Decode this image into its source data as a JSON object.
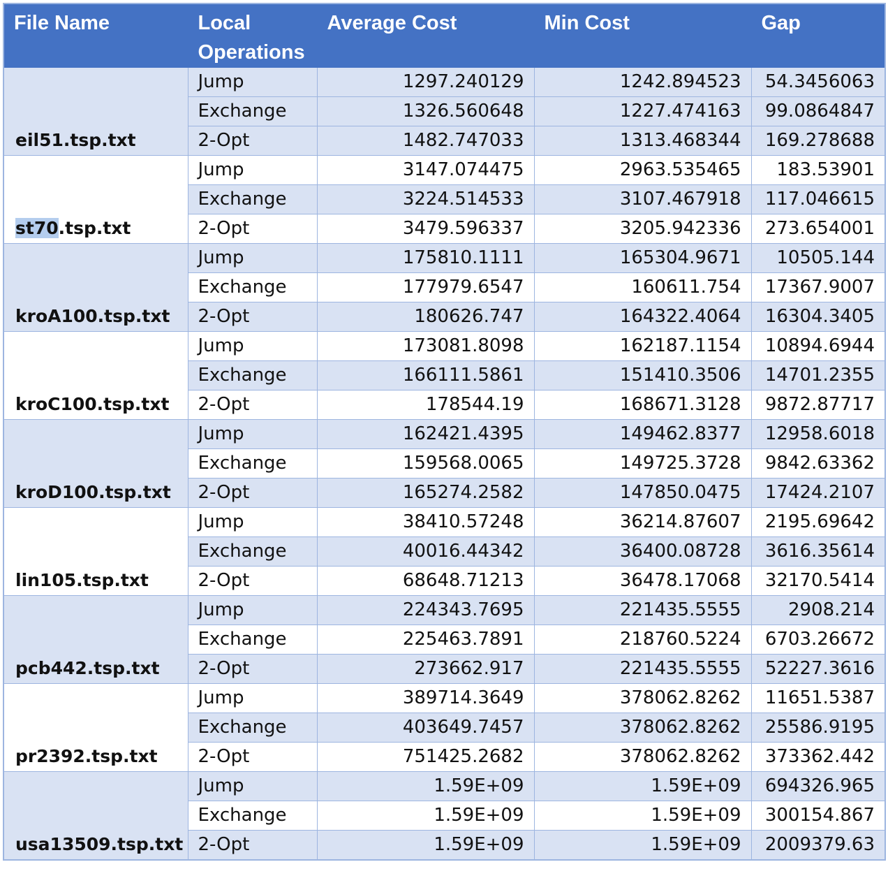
{
  "headers": {
    "file_name": "File Name",
    "local_operations": "Local Operations",
    "average_cost": "Average Cost",
    "min_cost": "Min Cost",
    "gap": "Gap"
  },
  "colors": {
    "header_bg": "#4472c4",
    "band_bg": "#d9e2f3",
    "plain_bg": "#ffffff",
    "selection": "#b4cdee"
  },
  "groups": [
    {
      "file": "eil51.tsp.txt",
      "rows": [
        {
          "op": "Jump",
          "avg": "1297.240129",
          "min": "1242.894523",
          "gap": "54.3456063"
        },
        {
          "op": "Exchange",
          "avg": "1326.560648",
          "min": "1227.474163",
          "gap": "99.0864847"
        },
        {
          "op": "2-Opt",
          "avg": "1482.747033",
          "min": "1313.468344",
          "gap": "169.278688"
        }
      ]
    },
    {
      "file": "st70.tsp.txt",
      "file_highlight": "st70",
      "file_rest": ".tsp.txt",
      "rows": [
        {
          "op": "Jump",
          "avg": "3147.074475",
          "min": "2963.535465",
          "gap": "183.53901"
        },
        {
          "op": "Exchange",
          "avg": "3224.514533",
          "min": "3107.467918",
          "gap": "117.046615"
        },
        {
          "op": "2-Opt",
          "avg": "3479.596337",
          "min": "3205.942336",
          "gap": "273.654001"
        }
      ]
    },
    {
      "file": "kroA100.tsp.txt",
      "rows": [
        {
          "op": "Jump",
          "avg": "175810.1111",
          "min": "165304.9671",
          "gap": "10505.144"
        },
        {
          "op": "Exchange",
          "avg": "177979.6547",
          "min": "160611.754",
          "gap": "17367.9007"
        },
        {
          "op": "2-Opt",
          "avg": "180626.747",
          "min": "164322.4064",
          "gap": "16304.3405"
        }
      ]
    },
    {
      "file": "kroC100.tsp.txt",
      "rows": [
        {
          "op": "Jump",
          "avg": "173081.8098",
          "min": "162187.1154",
          "gap": "10894.6944"
        },
        {
          "op": "Exchange",
          "avg": "166111.5861",
          "min": "151410.3506",
          "gap": "14701.2355"
        },
        {
          "op": "2-Opt",
          "avg": "178544.19",
          "min": "168671.3128",
          "gap": "9872.87717"
        }
      ]
    },
    {
      "file": "kroD100.tsp.txt",
      "rows": [
        {
          "op": "Jump",
          "avg": "162421.4395",
          "min": "149462.8377",
          "gap": "12958.6018"
        },
        {
          "op": "Exchange",
          "avg": "159568.0065",
          "min": "149725.3728",
          "gap": "9842.63362"
        },
        {
          "op": "2-Opt",
          "avg": "165274.2582",
          "min": "147850.0475",
          "gap": "17424.2107"
        }
      ]
    },
    {
      "file": "lin105.tsp.txt",
      "rows": [
        {
          "op": "Jump",
          "avg": "38410.57248",
          "min": "36214.87607",
          "gap": "2195.69642"
        },
        {
          "op": "Exchange",
          "avg": "40016.44342",
          "min": "36400.08728",
          "gap": "3616.35614"
        },
        {
          "op": "2-Opt",
          "avg": "68648.71213",
          "min": "36478.17068",
          "gap": "32170.5414"
        }
      ]
    },
    {
      "file": "pcb442.tsp.txt",
      "rows": [
        {
          "op": "Jump",
          "avg": "224343.7695",
          "min": "221435.5555",
          "gap": "2908.214"
        },
        {
          "op": "Exchange",
          "avg": "225463.7891",
          "min": "218760.5224",
          "gap": "6703.26672"
        },
        {
          "op": "2-Opt",
          "avg": "273662.917",
          "min": "221435.5555",
          "gap": "52227.3616"
        }
      ]
    },
    {
      "file": "pr2392.tsp.txt",
      "rows": [
        {
          "op": "Jump",
          "avg": "389714.3649",
          "min": "378062.8262",
          "gap": "11651.5387"
        },
        {
          "op": "Exchange",
          "avg": "403649.7457",
          "min": "378062.8262",
          "gap": "25586.9195"
        },
        {
          "op": "2-Opt",
          "avg": "751425.2682",
          "min": "378062.8262",
          "gap": "373362.442"
        }
      ]
    },
    {
      "file": "usa13509.tsp.txt",
      "rows": [
        {
          "op": "Jump",
          "avg": "1.59E+09",
          "min": "1.59E+09",
          "gap": "694326.965"
        },
        {
          "op": "Exchange",
          "avg": "1.59E+09",
          "min": "1.59E+09",
          "gap": "300154.867"
        },
        {
          "op": "2-Opt",
          "avg": "1.59E+09",
          "min": "1.59E+09",
          "gap": "2009379.63"
        }
      ]
    }
  ]
}
